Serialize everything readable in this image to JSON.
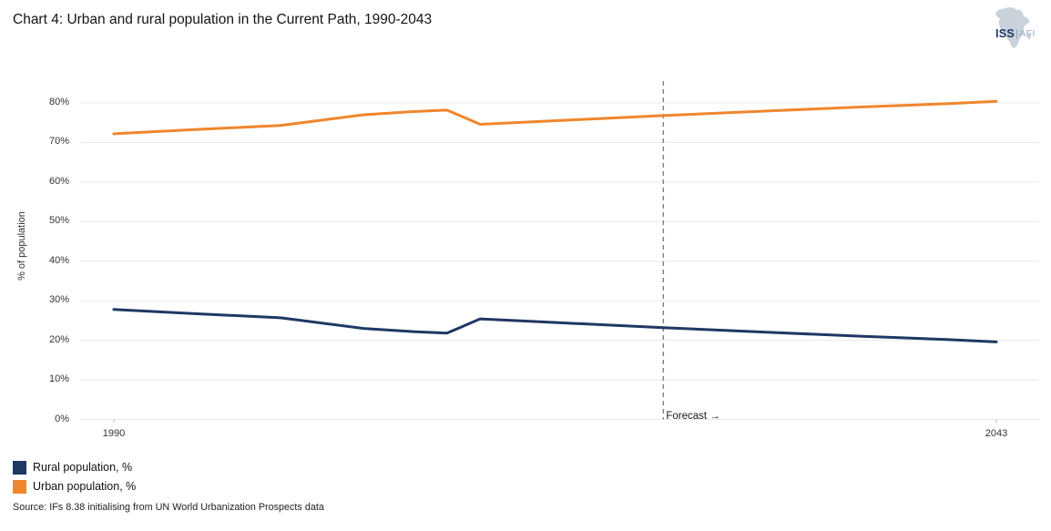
{
  "header": {
    "title": "Chart 4: Urban and rural population in the Current Path, 1990-2043",
    "logo": {
      "iss": "ISS",
      "afi": "AFI",
      "africa_color": "#C9D2DB",
      "iss_color": "#1E3862",
      "afi_color": "#8FA9C4"
    }
  },
  "chart_data": {
    "type": "line",
    "title": "Chart 4: Urban and rural population in the Current Path, 1990-2043",
    "ylabel": "% of population",
    "xlabel": "",
    "ylim": [
      0,
      80
    ],
    "ytick_step": 10,
    "ytick_suffix": "%",
    "grid": true,
    "gridline_color": "#E9E9E9",
    "axis_tick_color": "#BFBFBF",
    "x": [
      1990,
      1995,
      2000,
      2005,
      2008,
      2010,
      2012,
      2015,
      2020,
      2023,
      2030,
      2035,
      2040,
      2043
    ],
    "xticks": [
      1990,
      2043
    ],
    "xtick_labels": [
      "1990",
      "2043"
    ],
    "series": [
      {
        "name": "Rural population, %",
        "color": "#1F3864",
        "values": [
          27.8,
          26.7,
          25.7,
          23.0,
          22.2,
          21.8,
          25.4,
          24.8,
          23.8,
          23.2,
          21.9,
          21.0,
          20.2,
          19.6
        ]
      },
      {
        "name": "Urban population, %",
        "color": "#F0862D",
        "values": [
          72.2,
          73.3,
          74.3,
          77.0,
          77.8,
          78.2,
          74.6,
          75.2,
          76.2,
          76.8,
          78.1,
          79.0,
          79.8,
          80.4
        ]
      }
    ],
    "forecast": {
      "x": 2023,
      "label": "Forecast →",
      "line_color": "#7F7F7F"
    },
    "legend_position": "bottom-left"
  },
  "source": "Source: IFs 8.38 initialising from UN World Urbanization Prospects data"
}
